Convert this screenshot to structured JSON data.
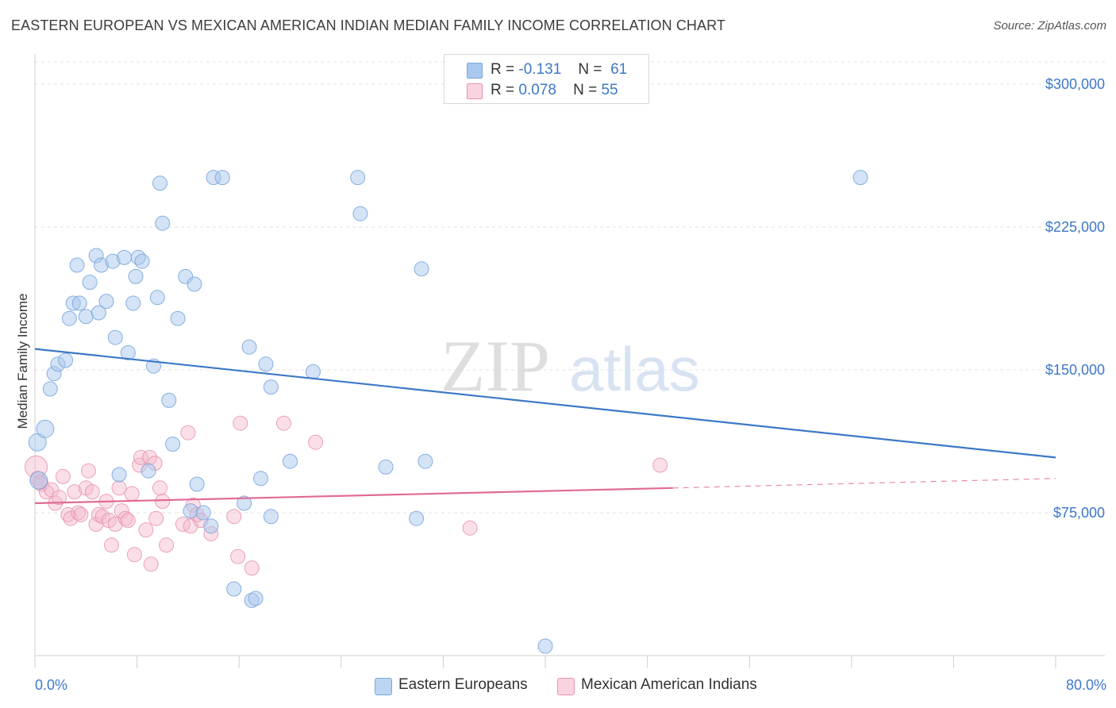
{
  "header": {
    "title": "EASTERN EUROPEAN VS MEXICAN AMERICAN INDIAN MEDIAN FAMILY INCOME CORRELATION CHART",
    "source": "Source: ZipAtlas.com"
  },
  "watermark": {
    "zip": "ZIP",
    "atlas": "atlas"
  },
  "legend_top": {
    "rows": [
      {
        "r_label": "R =",
        "r_value": "-0.131",
        "n_label": "N =",
        "n_value": "61"
      },
      {
        "r_label": "R =",
        "r_value": "0.078",
        "n_label": "N =",
        "n_value": "55"
      }
    ]
  },
  "colors": {
    "blue_fill": "#a9c8ee",
    "blue_stroke": "#7ba7de",
    "blue_line": "#3d78c8",
    "pink_fill": "#f4b8cb",
    "pink_stroke": "#e992ae",
    "pink_line": "#e06b96",
    "tick_text": "#3d78c8",
    "grid": "#e3e3e3"
  },
  "chart_data": {
    "type": "scatter",
    "title": "EASTERN EUROPEAN VS MEXICAN AMERICAN INDIAN MEDIAN FAMILY INCOME CORRELATION CHART",
    "xlabel": "",
    "ylabel": "Median Family Income",
    "xlim": [
      0,
      80
    ],
    "ylim": [
      0,
      315000
    ],
    "x_tick_labels": [
      "0.0%",
      "80.0%"
    ],
    "y_ticks": [
      75000,
      150000,
      225000,
      300000
    ],
    "y_tick_labels": [
      "$75,000",
      "$150,000",
      "$225,000",
      "$300,000"
    ],
    "grid": true,
    "legend_position": "bottom",
    "series": [
      {
        "name": "Eastern Europeans",
        "color": "#a9c8ee",
        "trend": {
          "x": [
            0,
            80
          ],
          "y": [
            161000,
            104000
          ],
          "style": "solid"
        },
        "points": [
          [
            0.2,
            112000
          ],
          [
            0.3,
            92000
          ],
          [
            0.8,
            119000
          ],
          [
            1.2,
            140000
          ],
          [
            1.5,
            148000
          ],
          [
            1.8,
            153000
          ],
          [
            2.4,
            155000
          ],
          [
            2.7,
            177000
          ],
          [
            3.0,
            185000
          ],
          [
            3.3,
            205000
          ],
          [
            3.5,
            185000
          ],
          [
            4.0,
            178000
          ],
          [
            4.3,
            196000
          ],
          [
            4.8,
            210000
          ],
          [
            5.0,
            180000
          ],
          [
            5.2,
            205000
          ],
          [
            5.6,
            186000
          ],
          [
            6.1,
            207000
          ],
          [
            6.3,
            167000
          ],
          [
            6.6,
            95000
          ],
          [
            7.0,
            209000
          ],
          [
            7.3,
            159000
          ],
          [
            7.7,
            185000
          ],
          [
            7.9,
            199000
          ],
          [
            8.1,
            209000
          ],
          [
            8.4,
            207000
          ],
          [
            8.9,
            97000
          ],
          [
            9.3,
            152000
          ],
          [
            9.6,
            188000
          ],
          [
            9.8,
            248000
          ],
          [
            10.0,
            227000
          ],
          [
            10.5,
            134000
          ],
          [
            10.8,
            111000
          ],
          [
            11.2,
            177000
          ],
          [
            11.8,
            199000
          ],
          [
            12.2,
            76000
          ],
          [
            12.5,
            195000
          ],
          [
            12.7,
            90000
          ],
          [
            13.2,
            75000
          ],
          [
            13.8,
            68000
          ],
          [
            14.0,
            251000
          ],
          [
            14.7,
            251000
          ],
          [
            15.6,
            35000
          ],
          [
            16.4,
            80000
          ],
          [
            16.8,
            162000
          ],
          [
            17.0,
            29000
          ],
          [
            17.3,
            30000
          ],
          [
            17.7,
            93000
          ],
          [
            18.1,
            153000
          ],
          [
            18.5,
            73000
          ],
          [
            18.5,
            141000
          ],
          [
            20.0,
            102000
          ],
          [
            21.8,
            149000
          ],
          [
            25.3,
            251000
          ],
          [
            25.5,
            232000
          ],
          [
            27.5,
            99000
          ],
          [
            29.9,
            72000
          ],
          [
            30.3,
            203000
          ],
          [
            30.6,
            102000
          ],
          [
            40.0,
            5000
          ],
          [
            64.7,
            251000
          ]
        ]
      },
      {
        "name": "Mexican American Indians",
        "color": "#f4b8cb",
        "trend": {
          "x": [
            0,
            50,
            80
          ],
          "y": [
            80000,
            88000,
            93000
          ],
          "style": "solid-then-dashed"
        },
        "points": [
          [
            0.1,
            99000
          ],
          [
            0.2,
            93000
          ],
          [
            0.5,
            90000
          ],
          [
            0.9,
            86000
          ],
          [
            1.3,
            87000
          ],
          [
            1.6,
            80000
          ],
          [
            1.9,
            83000
          ],
          [
            2.2,
            94000
          ],
          [
            2.6,
            74000
          ],
          [
            2.8,
            72000
          ],
          [
            3.1,
            86000
          ],
          [
            3.4,
            75000
          ],
          [
            3.6,
            74000
          ],
          [
            4.0,
            88000
          ],
          [
            4.2,
            97000
          ],
          [
            4.5,
            86000
          ],
          [
            4.8,
            69000
          ],
          [
            5.0,
            74000
          ],
          [
            5.3,
            73000
          ],
          [
            5.6,
            81000
          ],
          [
            5.8,
            71000
          ],
          [
            6.0,
            58000
          ],
          [
            6.3,
            69000
          ],
          [
            6.6,
            88000
          ],
          [
            6.8,
            76000
          ],
          [
            7.1,
            72000
          ],
          [
            7.3,
            71000
          ],
          [
            7.6,
            85000
          ],
          [
            7.8,
            53000
          ],
          [
            8.2,
            100000
          ],
          [
            8.3,
            104000
          ],
          [
            8.7,
            66000
          ],
          [
            9.0,
            104000
          ],
          [
            9.1,
            48000
          ],
          [
            9.4,
            101000
          ],
          [
            9.5,
            72000
          ],
          [
            9.8,
            88000
          ],
          [
            10.0,
            81000
          ],
          [
            10.3,
            58000
          ],
          [
            11.6,
            69000
          ],
          [
            12.0,
            117000
          ],
          [
            12.2,
            68000
          ],
          [
            12.4,
            79000
          ],
          [
            12.7,
            74000
          ],
          [
            13.0,
            71000
          ],
          [
            13.8,
            64000
          ],
          [
            15.6,
            73000
          ],
          [
            15.9,
            52000
          ],
          [
            16.1,
            122000
          ],
          [
            17.0,
            46000
          ],
          [
            19.5,
            122000
          ],
          [
            22.0,
            112000
          ],
          [
            34.1,
            67000
          ],
          [
            49.0,
            100000
          ],
          [
            0.4,
            91000
          ]
        ]
      }
    ]
  },
  "legend_bottom": {
    "items": [
      "Eastern Europeans",
      "Mexican American Indians"
    ]
  }
}
